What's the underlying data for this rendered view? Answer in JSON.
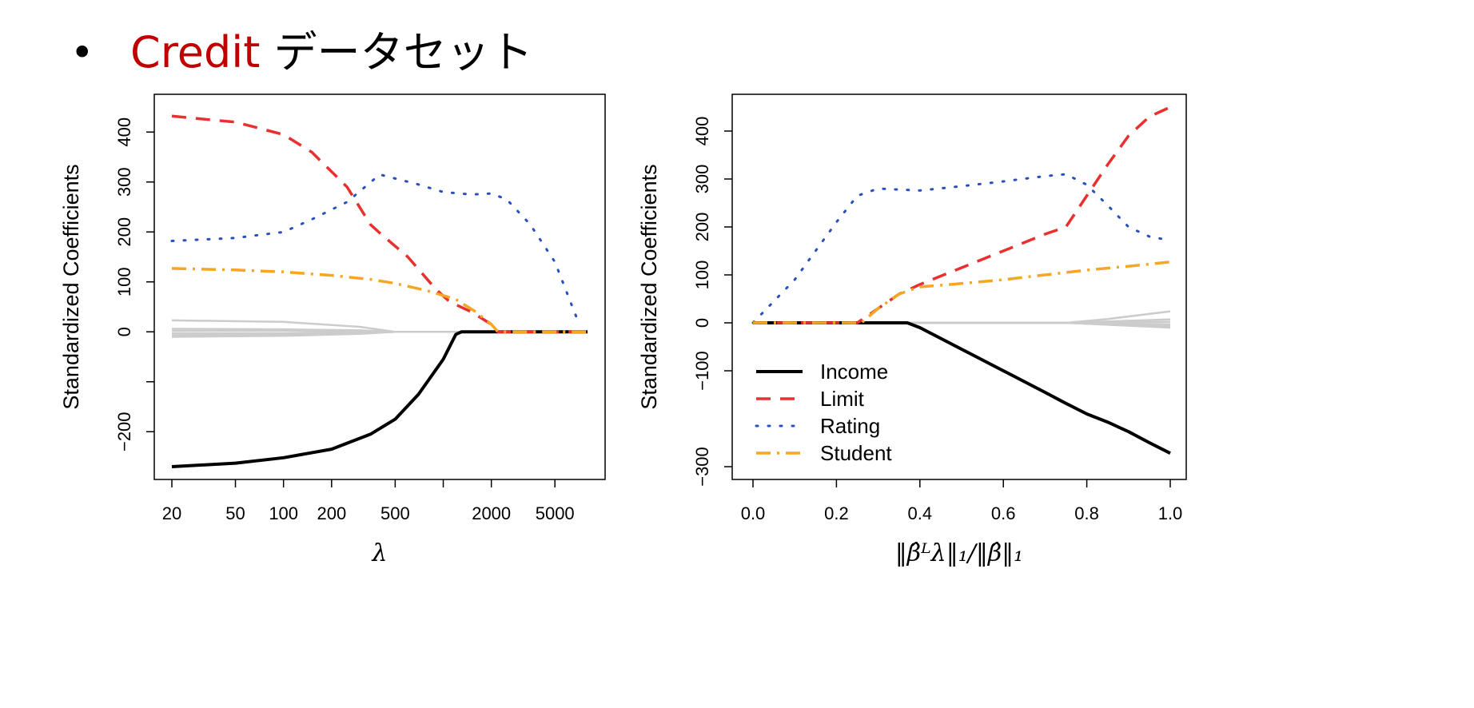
{
  "slide": {
    "bullet": "•",
    "title_highlight": "Credit",
    "title_rest": " データセット"
  },
  "colors": {
    "income": "#000000",
    "limit": "#e8312f",
    "rating": "#2a4fbf",
    "student": "#f5a623",
    "others": "#cccccc",
    "title_accent": "#c00000"
  },
  "chart_data": [
    {
      "type": "line",
      "xscale": "log",
      "xlabel": "λ",
      "ylabel": "Standardized Coefficients",
      "xlim": [
        20,
        8000
      ],
      "ylim": [
        -270,
        450
      ],
      "xticks": [
        20,
        50,
        100,
        200,
        500,
        2000,
        5000
      ],
      "xtick_labels": [
        "20",
        "50",
        "100",
        "200",
        "500",
        "2000",
        "5000"
      ],
      "xticks_unlabeled": [
        1000
      ],
      "yticks": [
        -200,
        -100,
        0,
        100,
        200,
        300,
        400
      ],
      "ytick_labels": [
        "−200",
        "",
        "0",
        "100",
        "200",
        "300",
        "400"
      ],
      "grid": false,
      "series": [
        {
          "key": "income",
          "style": "solid",
          "x": [
            20,
            50,
            100,
            200,
            350,
            500,
            700,
            1000,
            1200,
            1300,
            2000,
            5000,
            8000
          ],
          "y": [
            -270,
            -263,
            -252,
            -235,
            -205,
            -175,
            -125,
            -55,
            -5,
            0,
            0,
            0,
            0
          ]
        },
        {
          "key": "limit",
          "style": "dashed",
          "x": [
            20,
            50,
            100,
            150,
            250,
            350,
            400,
            600,
            900,
            1100,
            1500,
            2000,
            2200,
            5000,
            8000
          ],
          "y": [
            432,
            420,
            395,
            360,
            290,
            215,
            198,
            150,
            85,
            60,
            40,
            15,
            0,
            0,
            0
          ]
        },
        {
          "key": "rating",
          "style": "dotted",
          "x": [
            20,
            50,
            100,
            150,
            250,
            400,
            700,
            1000,
            1500,
            2000,
            2500,
            3500,
            5000,
            7000
          ],
          "y": [
            182,
            188,
            200,
            225,
            260,
            315,
            295,
            280,
            275,
            277,
            265,
            215,
            140,
            20
          ]
        },
        {
          "key": "student",
          "style": "dashdot",
          "x": [
            20,
            50,
            100,
            200,
            350,
            500,
            800,
            1200,
            1600,
            2000,
            2200,
            5000,
            8000
          ],
          "y": [
            127,
            124,
            120,
            113,
            105,
            97,
            82,
            65,
            40,
            15,
            0,
            0,
            0
          ]
        },
        {
          "key": "others",
          "style": "gray",
          "x": [
            20,
            100,
            300,
            500,
            1000,
            8000
          ],
          "y": [
            23,
            20,
            10,
            0,
            0,
            0
          ]
        },
        {
          "key": "others",
          "style": "gray",
          "x": [
            20,
            100,
            300,
            500,
            1000,
            8000
          ],
          "y": [
            6,
            5,
            3,
            0,
            0,
            0
          ]
        },
        {
          "key": "others",
          "style": "gray",
          "x": [
            20,
            100,
            300,
            500,
            1000,
            8000
          ],
          "y": [
            -3,
            -3,
            -1,
            0,
            0,
            0
          ]
        },
        {
          "key": "others",
          "style": "gray",
          "x": [
            20,
            100,
            300,
            500,
            1000,
            8000
          ],
          "y": [
            -7,
            -6,
            -3,
            0,
            0,
            0
          ]
        },
        {
          "key": "others",
          "style": "gray",
          "x": [
            20,
            100,
            300,
            500,
            1000,
            8000
          ],
          "y": [
            -10,
            -8,
            -4,
            0,
            0,
            0
          ]
        },
        {
          "key": "others",
          "style": "gray",
          "x": [
            20,
            100,
            300,
            500,
            1000,
            8000
          ],
          "y": [
            2,
            2,
            1,
            0,
            0,
            0
          ]
        }
      ]
    },
    {
      "type": "line",
      "xscale": "linear",
      "xlabel": "‖β̂ᴸλ‖₁/‖β̂‖₁",
      "ylabel": "Standardized Coefficients",
      "xlim": [
        0,
        1
      ],
      "ylim": [
        -300,
        450
      ],
      "xticks": [
        0,
        0.2,
        0.4,
        0.6,
        0.8,
        1
      ],
      "xtick_labels": [
        "0.0",
        "0.2",
        "0.4",
        "0.6",
        "0.8",
        "1.0"
      ],
      "yticks": [
        -300,
        -100,
        0,
        100,
        200,
        300,
        400
      ],
      "ytick_labels": [
        "−300",
        "−100",
        "0",
        "100",
        "200",
        "300",
        "400"
      ],
      "grid": false,
      "legend": {
        "position": "bottom-left",
        "entries": [
          {
            "label": "Income",
            "key": "income",
            "style": "solid"
          },
          {
            "label": "Limit",
            "key": "limit",
            "style": "dashed"
          },
          {
            "label": "Rating",
            "key": "rating",
            "style": "dotted"
          },
          {
            "label": "Student",
            "key": "student",
            "style": "dashdot"
          }
        ]
      },
      "series": [
        {
          "key": "income",
          "style": "solid",
          "x": [
            0,
            0.37,
            0.4,
            0.5,
            0.6,
            0.7,
            0.75,
            0.8,
            0.85,
            0.9,
            0.95,
            1.0
          ],
          "y": [
            0,
            0,
            -10,
            -55,
            -100,
            -145,
            -168,
            -190,
            -207,
            -227,
            -250,
            -272
          ]
        },
        {
          "key": "limit",
          "style": "dashed",
          "x": [
            0,
            0.25,
            0.3,
            0.35,
            0.4,
            0.5,
            0.6,
            0.7,
            0.75,
            0.8,
            0.85,
            0.9,
            0.95,
            1.0
          ],
          "y": [
            0,
            0,
            30,
            60,
            80,
            115,
            150,
            185,
            200,
            265,
            330,
            390,
            430,
            450
          ]
        },
        {
          "key": "rating",
          "style": "dotted",
          "x": [
            0,
            0.1,
            0.2,
            0.25,
            0.3,
            0.4,
            0.5,
            0.6,
            0.7,
            0.75,
            0.8,
            0.85,
            0.9,
            0.95,
            1.0
          ],
          "y": [
            0,
            90,
            210,
            265,
            280,
            276,
            285,
            295,
            306,
            310,
            288,
            245,
            200,
            180,
            172
          ]
        },
        {
          "key": "student",
          "style": "dashdot",
          "x": [
            0,
            0.26,
            0.3,
            0.35,
            0.4,
            0.5,
            0.6,
            0.7,
            0.8,
            0.9,
            1.0
          ],
          "y": [
            0,
            0,
            30,
            60,
            75,
            82,
            90,
            100,
            110,
            118,
            127
          ]
        },
        {
          "key": "others",
          "style": "gray",
          "x": [
            0,
            0.75,
            0.85,
            1.0
          ],
          "y": [
            0,
            0,
            8,
            24
          ]
        },
        {
          "key": "others",
          "style": "gray",
          "x": [
            0,
            0.75,
            0.85,
            1.0
          ],
          "y": [
            0,
            0,
            3,
            7
          ]
        },
        {
          "key": "others",
          "style": "gray",
          "x": [
            0,
            0.75,
            0.85,
            1.0
          ],
          "y": [
            0,
            0,
            -2,
            -3
          ]
        },
        {
          "key": "others",
          "style": "gray",
          "x": [
            0,
            0.75,
            0.85,
            1.0
          ],
          "y": [
            0,
            0,
            -3,
            -7
          ]
        },
        {
          "key": "others",
          "style": "gray",
          "x": [
            0,
            0.75,
            0.85,
            1.0
          ],
          "y": [
            0,
            0,
            -4,
            -10
          ]
        },
        {
          "key": "others",
          "style": "gray",
          "x": [
            0,
            0.75,
            0.85,
            1.0
          ],
          "y": [
            0,
            0,
            1,
            2
          ]
        }
      ]
    }
  ]
}
